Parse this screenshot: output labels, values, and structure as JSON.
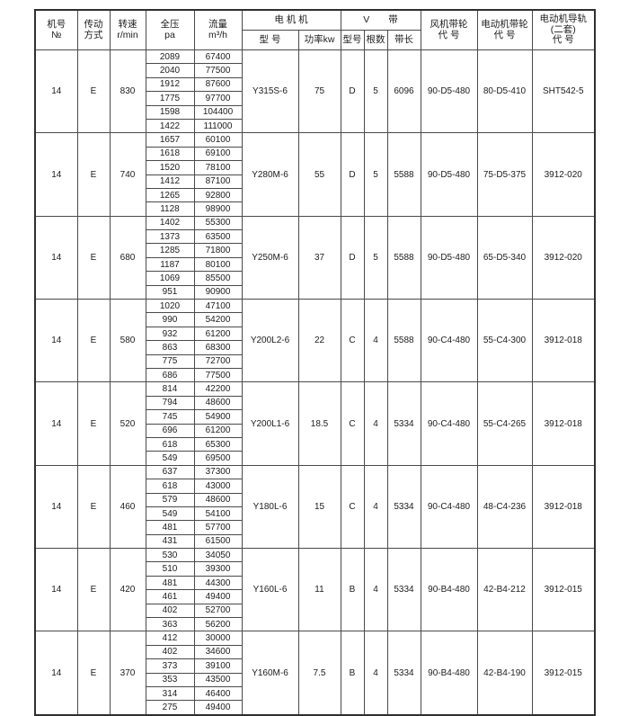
{
  "table": {
    "header": {
      "machine": "机号\n№",
      "drive": "传动\n方式",
      "speed": "转速\nr/min",
      "pressure": "全压\npa",
      "flow": "流量\nm³/h",
      "motor_group": "电 机 机",
      "motor_model": "型 号",
      "motor_power": "功率kw",
      "v_group": "V　　带",
      "v_model": "型号",
      "v_count": "根数",
      "v_length": "带长",
      "fan_pulley": "风机带轮\n代 号",
      "motor_pulley": "电动机带轮\n代 号",
      "rail": "电动机导轨\n(二套)\n代 号"
    },
    "blocks": [
      {
        "machine_no": "14",
        "drive": "E",
        "speed": "830",
        "motor_model": "Y315S-6",
        "motor_power": "75",
        "belt_type": "D",
        "belt_count": "5",
        "belt_length": "6096",
        "fan_pulley": "90-D5-480",
        "motor_pulley": "80-D5-410",
        "rail_code": "SHT542-5",
        "rows": [
          {
            "pa": "2089",
            "flow": "67400"
          },
          {
            "pa": "2040",
            "flow": "77500"
          },
          {
            "pa": "1912",
            "flow": "87600"
          },
          {
            "pa": "1775",
            "flow": "97700"
          },
          {
            "pa": "1598",
            "flow": "104400"
          },
          {
            "pa": "1422",
            "flow": "111000"
          }
        ]
      },
      {
        "machine_no": "14",
        "drive": "E",
        "speed": "740",
        "motor_model": "Y280M-6",
        "motor_power": "55",
        "belt_type": "D",
        "belt_count": "5",
        "belt_length": "5588",
        "fan_pulley": "90-D5-480",
        "motor_pulley": "75-D5-375",
        "rail_code": "3912-020",
        "rows": [
          {
            "pa": "1657",
            "flow": "60100"
          },
          {
            "pa": "1618",
            "flow": "69100"
          },
          {
            "pa": "1520",
            "flow": "78100"
          },
          {
            "pa": "1412",
            "flow": "87100"
          },
          {
            "pa": "1265",
            "flow": "92800"
          },
          {
            "pa": "1128",
            "flow": "98900"
          }
        ]
      },
      {
        "machine_no": "14",
        "drive": "E",
        "speed": "680",
        "motor_model": "Y250M-6",
        "motor_power": "37",
        "belt_type": "D",
        "belt_count": "5",
        "belt_length": "5588",
        "fan_pulley": "90-D5-480",
        "motor_pulley": "65-D5-340",
        "rail_code": "3912-020",
        "rows": [
          {
            "pa": "1402",
            "flow": "55300"
          },
          {
            "pa": "1373",
            "flow": "63500"
          },
          {
            "pa": "1285",
            "flow": "71800"
          },
          {
            "pa": "1187",
            "flow": "80100"
          },
          {
            "pa": "1069",
            "flow": "85500"
          },
          {
            "pa": "951",
            "flow": "90900"
          }
        ]
      },
      {
        "machine_no": "14",
        "drive": "E",
        "speed": "580",
        "motor_model": "Y200L2-6",
        "motor_power": "22",
        "belt_type": "C",
        "belt_count": "4",
        "belt_length": "5588",
        "fan_pulley": "90-C4-480",
        "motor_pulley": "55-C4-300",
        "rail_code": "3912-018",
        "rows": [
          {
            "pa": "1020",
            "flow": "47100"
          },
          {
            "pa": "990",
            "flow": "54200"
          },
          {
            "pa": "932",
            "flow": "61200"
          },
          {
            "pa": "863",
            "flow": "68300"
          },
          {
            "pa": "775",
            "flow": "72700"
          },
          {
            "pa": "686",
            "flow": "77500"
          }
        ]
      },
      {
        "machine_no": "14",
        "drive": "E",
        "speed": "520",
        "motor_model": "Y200L1-6",
        "motor_power": "18.5",
        "belt_type": "C",
        "belt_count": "4",
        "belt_length": "5334",
        "fan_pulley": "90-C4-480",
        "motor_pulley": "55-C4-265",
        "rail_code": "3912-018",
        "rows": [
          {
            "pa": "814",
            "flow": "42200"
          },
          {
            "pa": "794",
            "flow": "48600"
          },
          {
            "pa": "745",
            "flow": "54900"
          },
          {
            "pa": "696",
            "flow": "61200"
          },
          {
            "pa": "618",
            "flow": "65300"
          },
          {
            "pa": "549",
            "flow": "69500"
          }
        ]
      },
      {
        "machine_no": "14",
        "drive": "E",
        "speed": "460",
        "motor_model": "Y180L-6",
        "motor_power": "15",
        "belt_type": "C",
        "belt_count": "4",
        "belt_length": "5334",
        "fan_pulley": "90-C4-480",
        "motor_pulley": "48-C4-236",
        "rail_code": "3912-018",
        "rows": [
          {
            "pa": "637",
            "flow": "37300"
          },
          {
            "pa": "618",
            "flow": "43000"
          },
          {
            "pa": "579",
            "flow": "48600"
          },
          {
            "pa": "549",
            "flow": "54100"
          },
          {
            "pa": "481",
            "flow": "57700"
          },
          {
            "pa": "431",
            "flow": "61500"
          }
        ]
      },
      {
        "machine_no": "14",
        "drive": "E",
        "speed": "420",
        "motor_model": "Y160L-6",
        "motor_power": "11",
        "belt_type": "B",
        "belt_count": "4",
        "belt_length": "5334",
        "fan_pulley": "90-B4-480",
        "motor_pulley": "42-B4-212",
        "rail_code": "3912-015",
        "rows": [
          {
            "pa": "530",
            "flow": "34050"
          },
          {
            "pa": "510",
            "flow": "39300"
          },
          {
            "pa": "481",
            "flow": "44300"
          },
          {
            "pa": "461",
            "flow": "49400"
          },
          {
            "pa": "402",
            "flow": "52700"
          },
          {
            "pa": "363",
            "flow": "56200"
          }
        ]
      },
      {
        "machine_no": "14",
        "drive": "E",
        "speed": "370",
        "motor_model": "Y160M-6",
        "motor_power": "7.5",
        "belt_type": "B",
        "belt_count": "4",
        "belt_length": "5334",
        "fan_pulley": "90-B4-480",
        "motor_pulley": "42-B4-190",
        "rail_code": "3912-015",
        "rows": [
          {
            "pa": "412",
            "flow": "30000"
          },
          {
            "pa": "402",
            "flow": "34600"
          },
          {
            "pa": "373",
            "flow": "39100"
          },
          {
            "pa": "353",
            "flow": "43500"
          },
          {
            "pa": "314",
            "flow": "46400"
          },
          {
            "pa": "275",
            "flow": "49400"
          }
        ]
      }
    ]
  }
}
